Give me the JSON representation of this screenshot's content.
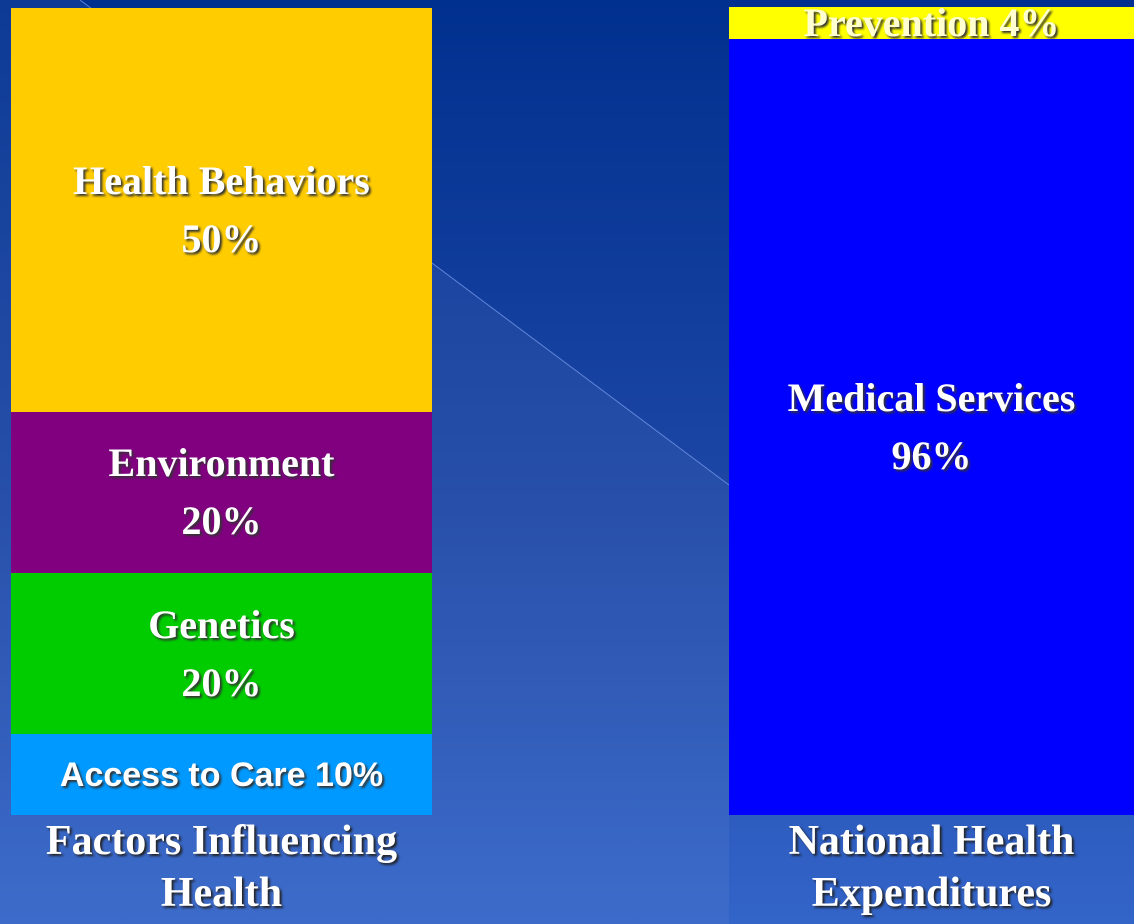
{
  "chart_data": [
    {
      "type": "stacked_bar",
      "title": "Factors Influencing Health",
      "ylim": [
        0,
        100
      ],
      "series": [
        {
          "name": "Access to Care",
          "color": "#0099ff",
          "values": [
            10
          ],
          "value_labels": [
            "10%"
          ]
        },
        {
          "name": "Genetics",
          "color": "#00cc00",
          "values": [
            20
          ],
          "value_labels": [
            "20%"
          ]
        },
        {
          "name": "Environment",
          "color": "#800080",
          "values": [
            20
          ],
          "value_labels": [
            "20%"
          ]
        },
        {
          "name": "Health Behaviors",
          "color": "#ffcc00",
          "values": [
            50
          ],
          "value_labels": [
            "50%"
          ]
        }
      ]
    },
    {
      "type": "stacked_bar",
      "title": "National Health Expenditures",
      "ylim": [
        0,
        100
      ],
      "series": [
        {
          "name": "Medical Services",
          "color": "#0000ff",
          "values": [
            96
          ],
          "value_labels": [
            "96%"
          ]
        },
        {
          "name": "Prevention",
          "color": "#ffff00",
          "values": [
            4
          ],
          "value_labels": [
            "4%"
          ]
        }
      ]
    }
  ]
}
